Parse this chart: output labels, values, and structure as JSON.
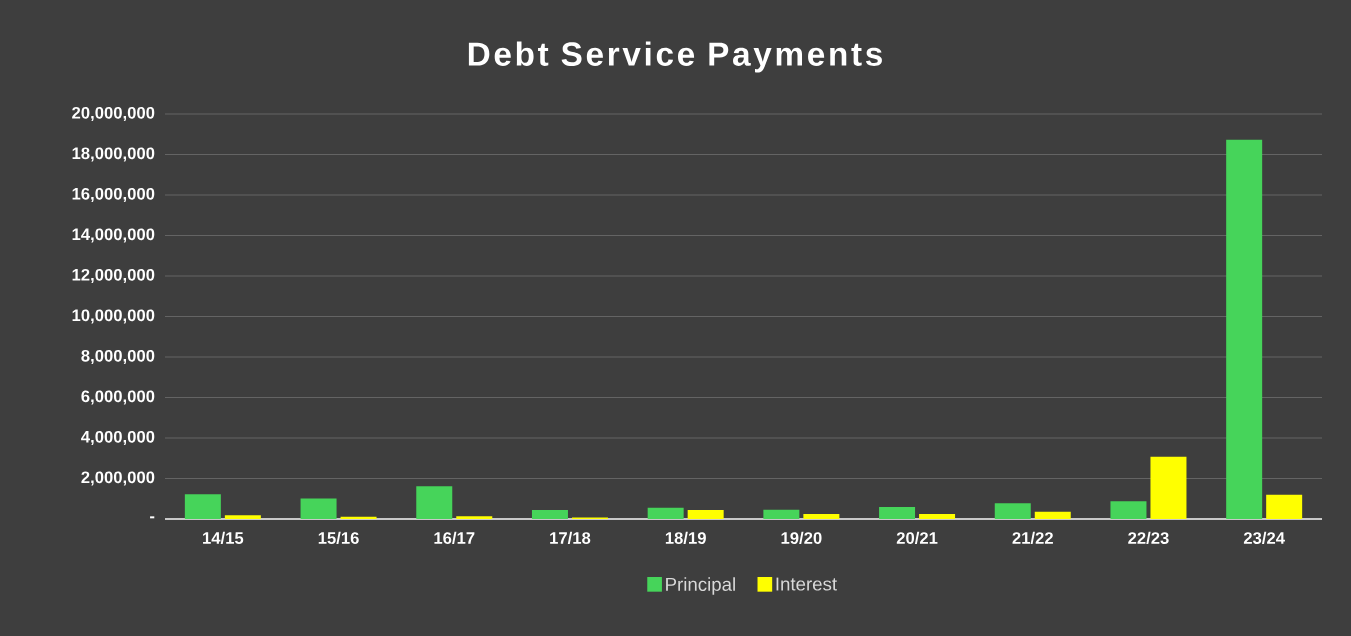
{
  "chart_data": {
    "type": "bar",
    "title": "Debt Service Payments",
    "categories": [
      "14/15",
      "15/16",
      "16/17",
      "17/18",
      "18/19",
      "19/20",
      "20/21",
      "21/22",
      "22/23",
      "23/24"
    ],
    "series": [
      {
        "name": "Principal",
        "color": "#46d45a",
        "values": [
          1220000,
          1010000,
          1620000,
          440000,
          550000,
          460000,
          590000,
          780000,
          880000,
          18730000
        ]
      },
      {
        "name": "Interest",
        "color": "#ffff00",
        "values": [
          190000,
          110000,
          130000,
          80000,
          440000,
          250000,
          250000,
          360000,
          3070000,
          1200000
        ]
      }
    ],
    "ylim": [
      0,
      20000000
    ],
    "yticks": [
      {
        "value": 0,
        "label": "-"
      },
      {
        "value": 2000000,
        "label": "2,000,000"
      },
      {
        "value": 4000000,
        "label": "4,000,000"
      },
      {
        "value": 6000000,
        "label": "6,000,000"
      },
      {
        "value": 8000000,
        "label": "8,000,000"
      },
      {
        "value": 10000000,
        "label": "10,000,000"
      },
      {
        "value": 12000000,
        "label": "12,000,000"
      },
      {
        "value": 14000000,
        "label": "14,000,000"
      },
      {
        "value": 16000000,
        "label": "16,000,000"
      },
      {
        "value": 18000000,
        "label": "18,000,000"
      },
      {
        "value": 20000000,
        "label": "20,000,000"
      }
    ],
    "grid": "y",
    "legend": "bottom"
  }
}
